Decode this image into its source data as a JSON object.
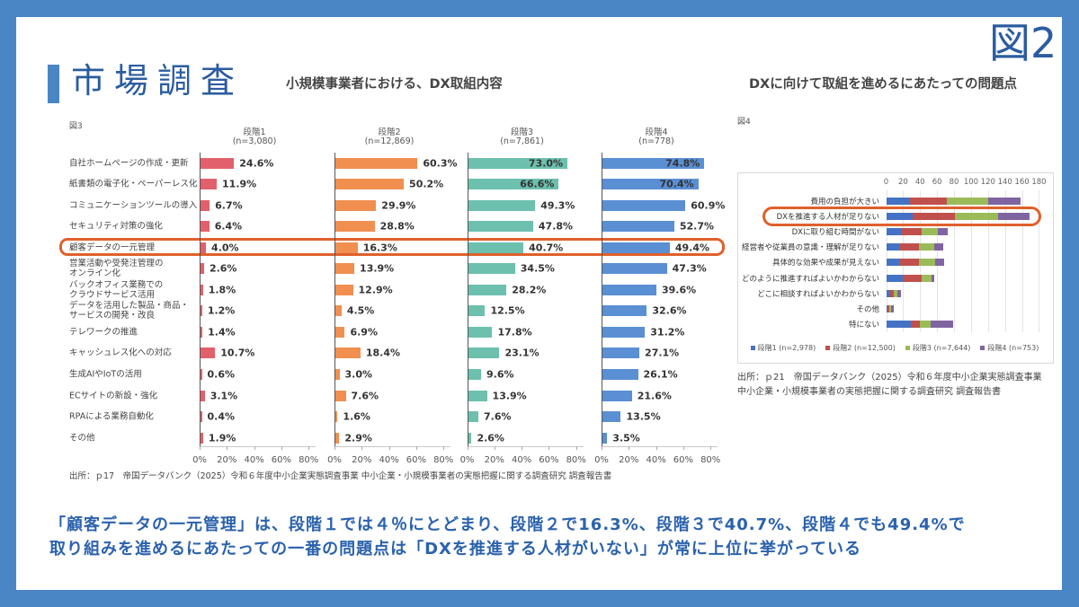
{
  "slide": {
    "title": "市場調査",
    "figure_number": "図2",
    "left_heading": "小規模事業者における、DX取組内容",
    "right_heading": "DXに向けて取組を進めるにあたっての問題点",
    "summary_lines": [
      "「顧客データの一元管理」は、段階１では４％にとどまり、段階２で16.3%、段階３で40.7%、段階４でも49.4%で",
      "取り組みを進めるにあたっての一番の問題点は「DXを推進する人材がいない」が常に上位に挙がっている"
    ]
  },
  "colors": {
    "frame": "#4a86c5",
    "title": "#2b5ca0",
    "summary_text": "#2b62ad",
    "highlight": "#e0602c"
  },
  "chart_data": [
    {
      "figure_label": "図3",
      "type": "bar",
      "orientation": "horizontal",
      "layout": "small-multiples",
      "categories": [
        "自社ホームページの作成・更新",
        "紙書類の電子化・ペーパーレス化",
        "コミュニケーションツールの導入",
        "セキュリティ対策の強化",
        "顧客データの一元管理",
        "営業活動や受発注管理の\nオンライン化",
        "バックオフィス業務での\nクラウドサービス活用",
        "データを活用した製品・商品・\nサービスの開発・改良",
        "テレワークの推進",
        "キャッシュレス化への対応",
        "生成AIやIoTの活用",
        "ECサイトの新設・強化",
        "RPAによる業務自動化",
        "その他"
      ],
      "series": [
        {
          "name": "段階1",
          "n_label": "(n=3,080)",
          "color": "#e2606b",
          "values": [
            24.6,
            11.9,
            6.7,
            6.4,
            4.0,
            2.6,
            1.8,
            1.2,
            1.4,
            10.7,
            0.6,
            3.1,
            0.4,
            1.9
          ],
          "labels": [
            "24.6%",
            "11.9%",
            "6.7%",
            "6.4%",
            "4.0%",
            "2.6%",
            "1.8%",
            "1.2%",
            "1.4%",
            "10.7%",
            "0.6%",
            "3.1%",
            "0.4%",
            "1.9%"
          ]
        },
        {
          "name": "段階2",
          "n_label": "(n=12,869)",
          "color": "#f08f50",
          "values": [
            60.3,
            50.2,
            29.9,
            28.8,
            16.3,
            13.9,
            12.9,
            4.5,
            6.9,
            18.4,
            3.0,
            7.6,
            1.6,
            2.9
          ],
          "labels": [
            "60.3%",
            "50.2%",
            "29.9%",
            "28.8%",
            "16.3%",
            "13.9%",
            "12.9%",
            "4.5%",
            "6.9%",
            "18.4%",
            "3.0%",
            "7.6%",
            "1.6%",
            "2.9%"
          ]
        },
        {
          "name": "段階3",
          "n_label": "(n=7,861)",
          "color": "#6cc0ad",
          "values": [
            73.0,
            66.6,
            49.3,
            47.8,
            40.7,
            34.5,
            28.2,
            12.5,
            17.8,
            23.1,
            9.6,
            13.9,
            7.6,
            2.6
          ],
          "labels": [
            "73.0%",
            "66.6%",
            "49.3%",
            "47.8%",
            "40.7%",
            "34.5%",
            "28.2%",
            "12.5%",
            "17.8%",
            "23.1%",
            "9.6%",
            "13.9%",
            "7.6%",
            "2.6%"
          ]
        },
        {
          "name": "段階4",
          "n_label": "(n=778)",
          "color": "#5a8fd3",
          "values": [
            74.8,
            70.4,
            60.9,
            52.7,
            49.4,
            47.3,
            39.6,
            32.6,
            31.2,
            27.1,
            26.1,
            21.6,
            13.5,
            3.5
          ],
          "labels": [
            "74.8%",
            "70.4%",
            "60.9%",
            "52.7%",
            "49.4%",
            "47.3%",
            "39.6%",
            "32.6%",
            "31.2%",
            "27.1%",
            "26.1%",
            "21.6%",
            "13.5%",
            "3.5%"
          ]
        }
      ],
      "x_tick_values": [
        0,
        20,
        40,
        60,
        80
      ],
      "x_tick_labels": [
        "0%",
        "20%",
        "40%",
        "60%",
        "80%"
      ],
      "xlim": [
        0,
        80
      ],
      "xlabel": "",
      "ylabel": "",
      "grid": false,
      "highlighted_category": "顧客データの一元管理",
      "source": "出所：ｐ17　帝国データバンク（2025）令和６年度中小企業実態調査事業 中小企業・小規模事業者の実態把握に関する調査研究 調査報告書"
    },
    {
      "figure_label": "図4",
      "type": "bar",
      "orientation": "horizontal",
      "stacked": true,
      "categories": [
        "費用の負担が大きい",
        "DXを推進する人材が足りない",
        "DXに取り組む時間がない",
        "経営者や従業員の意識・理解が足りない",
        "具体的な効果や成果が見えない",
        "どのように推進すればよいかわからない",
        "どこに相談すればよいかわからない",
        "その他",
        "特にない"
      ],
      "series": [
        {
          "name": "段階1 (n=2,978)",
          "color": "#4472c4",
          "values": [
            27,
            31,
            19,
            15,
            15,
            20,
            5,
            2,
            29
          ]
        },
        {
          "name": "段階2 (n=12,500)",
          "color": "#c0504d",
          "values": [
            44,
            50,
            23,
            24,
            24,
            22,
            4,
            2,
            11
          ]
        },
        {
          "name": "段階3 (n=7,644)",
          "color": "#9bbb59",
          "values": [
            49,
            51,
            19,
            18,
            19,
            11,
            4,
            2,
            12
          ]
        },
        {
          "name": "段階4 (n=753)",
          "color": "#8064a2",
          "values": [
            38,
            37,
            12,
            10,
            10,
            4,
            4,
            3,
            27
          ]
        }
      ],
      "x_tick_values": [
        0,
        20,
        40,
        60,
        80,
        100,
        120,
        140,
        160,
        180
      ],
      "x_tick_labels": [
        "0",
        "20",
        "40",
        "60",
        "80",
        "100",
        "120",
        "140",
        "160",
        "180"
      ],
      "xlim": [
        0,
        180
      ],
      "xlabel": "",
      "ylabel": "",
      "grid": true,
      "legend_position": "bottom",
      "highlighted_category": "DXを推進する人材が足りない",
      "source_lines": [
        "出所：ｐ21　帝国データバンク（2025）令和６年度中小企業実態調査事業",
        "中小企業・小規模事業者の実態把握に関する調査研究 調査報告書"
      ]
    }
  ]
}
